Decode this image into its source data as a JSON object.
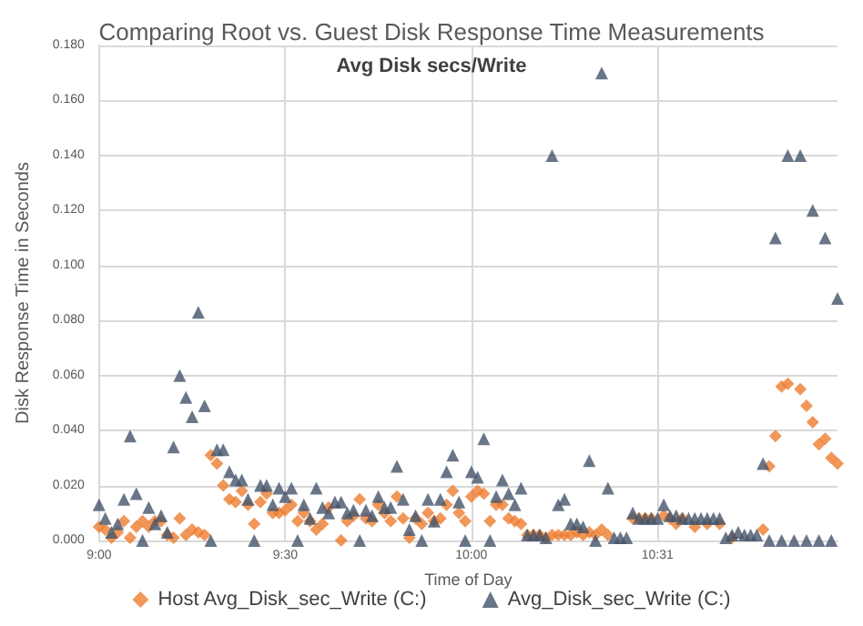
{
  "chart_data": {
    "type": "scatter",
    "title": "Comparing Root vs. Guest Disk Response Time Measurements",
    "subtitle": "Avg Disk secs/Write",
    "xlabel": "Time of Day",
    "ylabel": "Disk Response Time in Seconds",
    "categories": [
      "9:00",
      null,
      null,
      null,
      null,
      null,
      null,
      null,
      null,
      null,
      null,
      null,
      null,
      null,
      null,
      null,
      null,
      null,
      null,
      null,
      null,
      null,
      null,
      null,
      null,
      null,
      null,
      null,
      null,
      null,
      "9:30",
      null,
      null,
      null,
      null,
      null,
      null,
      null,
      null,
      null,
      null,
      null,
      null,
      null,
      null,
      null,
      null,
      null,
      null,
      null,
      null,
      null,
      null,
      null,
      null,
      null,
      null,
      null,
      null,
      null,
      "10:00",
      null,
      null,
      null,
      null,
      null,
      null,
      null,
      null,
      null,
      null,
      null,
      null,
      null,
      null,
      null,
      null,
      null,
      null,
      null,
      null,
      null,
      null,
      null,
      null,
      null,
      null,
      null,
      null,
      null,
      "10:31",
      null,
      null,
      null,
      null,
      null,
      null,
      null,
      null,
      null,
      null,
      null,
      null,
      null,
      null,
      null,
      null,
      null,
      null,
      null,
      null,
      null,
      null,
      null,
      null,
      null,
      null,
      null,
      null,
      null
    ],
    "ylim": [
      0,
      0.18
    ],
    "yticks": [
      {
        "value": 0,
        "label": "0.000"
      },
      {
        "value": 0.02,
        "label": "0.020"
      },
      {
        "value": 0.04,
        "label": "0.040"
      },
      {
        "value": 0.06,
        "label": "0.060"
      },
      {
        "value": 0.08,
        "label": "0.080"
      },
      {
        "value": 0.1,
        "label": "0.100"
      },
      {
        "value": 0.12,
        "label": "0.120"
      },
      {
        "value": 0.14,
        "label": "0.140"
      },
      {
        "value": 0.16,
        "label": "0.160"
      },
      {
        "value": 0.18,
        "label": "0.180"
      }
    ],
    "grid": true,
    "legend": "bottom",
    "series": [
      {
        "name": "Host Avg_Disk_sec_Write (C:)",
        "color": "#ed7d31",
        "marker": "diamond",
        "values": [
          0.005,
          0.004,
          0.001,
          0.003,
          0.007,
          0.001,
          0.005,
          0.007,
          0.005,
          0.007,
          0.007,
          0.002,
          0.001,
          0.008,
          0.002,
          0.004,
          0.003,
          0.002,
          0.031,
          0.028,
          0.02,
          0.015,
          0.014,
          0.018,
          0.013,
          0.006,
          0.014,
          0.017,
          0.01,
          0.01,
          0.011,
          0.013,
          0.007,
          0.01,
          0.007,
          0.004,
          0.006,
          0.012,
          null,
          0,
          0.007,
          0.009,
          0.015,
          0.008,
          0.007,
          0.013,
          0.01,
          0.007,
          0.016,
          0.008,
          0.001,
          0.008,
          0.006,
          0.01,
          0.007,
          0.008,
          0.013,
          0.018,
          0.01,
          0.007,
          0.016,
          0.018,
          0.017,
          0.007,
          0.013,
          0.013,
          0.008,
          0.007,
          0.006,
          0.002,
          0.002,
          0.002,
          0.001,
          0.002,
          0.002,
          0.002,
          0.002,
          0.003,
          0.002,
          0.003,
          0.002,
          0.004,
          0.002,
          null,
          null,
          null,
          0.008,
          0.008,
          0.008,
          0.008,
          null,
          0.009,
          0.008,
          0.006,
          0.008,
          null,
          0.005,
          null,
          0.006,
          null,
          0.006,
          null,
          0.001,
          null,
          null,
          null,
          null,
          0.004,
          0.027,
          0.038,
          0.056,
          0.057,
          null,
          0.055,
          0.049,
          0.043,
          0.035,
          0.037,
          0.03,
          0.028
        ]
      },
      {
        "name": "Avg_Disk_sec_Write (C:)",
        "color": "#44546a",
        "marker": "triangle",
        "values": [
          0.013,
          0.008,
          0.003,
          0.006,
          0.015,
          0.038,
          0.017,
          0,
          0.012,
          0.006,
          0.009,
          0.003,
          0.034,
          0.06,
          0.052,
          0.045,
          0.083,
          0.049,
          0,
          0.033,
          0.033,
          0.025,
          0.022,
          0.022,
          0.015,
          0,
          0.02,
          0.02,
          0.013,
          0.019,
          0.016,
          0.019,
          0,
          0.013,
          0.008,
          0.019,
          0.012,
          0.01,
          0.014,
          0.014,
          0.01,
          0.011,
          0,
          0.011,
          0.009,
          0.016,
          0.012,
          0.012,
          0.027,
          0.015,
          0.004,
          0.009,
          0,
          0.015,
          0.007,
          0.015,
          0.025,
          0.031,
          0.014,
          0,
          0.025,
          0.023,
          0.037,
          0,
          0.016,
          0.022,
          0.017,
          0.013,
          0.019,
          0.002,
          0.002,
          0.002,
          0.001,
          0.14,
          0.013,
          0.015,
          0.006,
          0.006,
          0.005,
          0.029,
          0,
          0.17,
          0.019,
          0.001,
          0.001,
          0.001,
          0.01,
          0.008,
          0.008,
          0.008,
          0.008,
          0.013,
          0.009,
          0.009,
          0.008,
          0.008,
          0.008,
          0.008,
          0.008,
          0.008,
          0.008,
          0.001,
          0.002,
          0.003,
          0.002,
          0.002,
          0.002,
          0.028,
          0,
          0.11,
          0,
          0.14,
          0,
          0.14,
          0,
          0.12,
          0,
          0.11,
          0,
          0.088
        ]
      }
    ]
  }
}
